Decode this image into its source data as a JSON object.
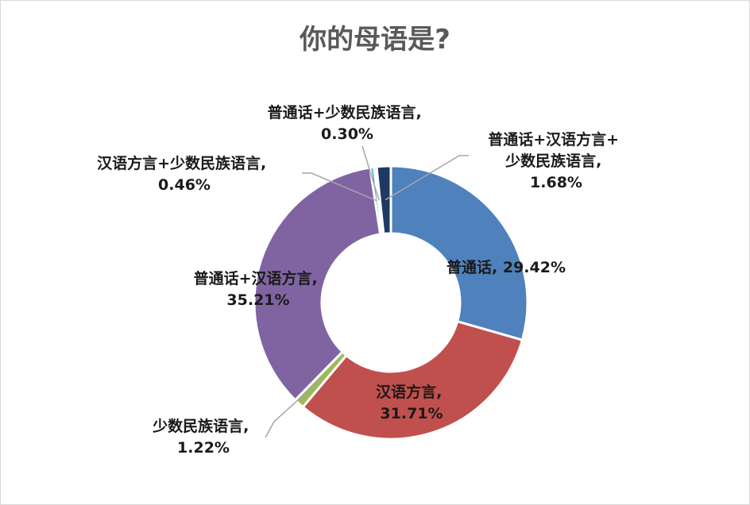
{
  "chart_data": {
    "type": "pie",
    "subtype": "donut",
    "title": "你的母语是?",
    "legend": "none",
    "slices": [
      {
        "category": "普通话",
        "value": 29.42,
        "value_label": "29.42%",
        "color": "#4f81bd"
      },
      {
        "category": "汉语方言",
        "value": 31.71,
        "value_label": "31.71%",
        "color": "#c0504d"
      },
      {
        "category": "少数民族语言",
        "value": 1.22,
        "value_label": "1.22%",
        "color": "#9bbb59"
      },
      {
        "category": "普通话+汉语方言",
        "value": 35.21,
        "value_label": "35.21%",
        "color": "#8064a2"
      },
      {
        "category": "汉语方言+少数民族语言",
        "value": 0.46,
        "value_label": "0.46%",
        "color": "#4bacc6"
      },
      {
        "category": "普通话+少数民族语言",
        "value": 0.3,
        "value_label": "0.30%",
        "color": "#f79646"
      },
      {
        "category": "普通话+汉语方言+少数民族语言",
        "value": 1.68,
        "value_label": "1.68%",
        "color": "#1f3864"
      }
    ]
  }
}
